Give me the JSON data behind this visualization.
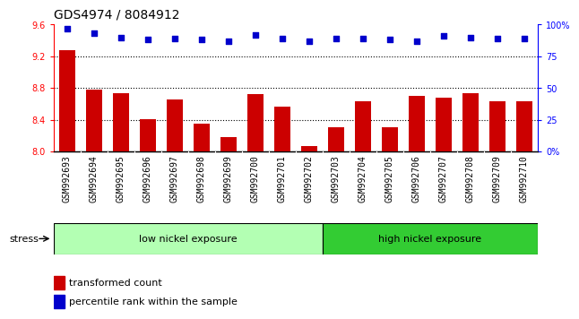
{
  "title": "GDS4974 / 8084912",
  "samples": [
    "GSM992693",
    "GSM992694",
    "GSM992695",
    "GSM992696",
    "GSM992697",
    "GSM992698",
    "GSM992699",
    "GSM992700",
    "GSM992701",
    "GSM992702",
    "GSM992703",
    "GSM992704",
    "GSM992705",
    "GSM992706",
    "GSM992707",
    "GSM992708",
    "GSM992709",
    "GSM992710"
  ],
  "bar_values": [
    9.28,
    8.78,
    8.73,
    8.41,
    8.65,
    8.35,
    8.18,
    8.72,
    8.56,
    8.07,
    8.31,
    8.63,
    8.31,
    8.7,
    8.68,
    8.73,
    8.63,
    8.63
  ],
  "dot_values": [
    97,
    93,
    90,
    88,
    89,
    88,
    87,
    92,
    89,
    87,
    89,
    89,
    88,
    87,
    91,
    90,
    89,
    89
  ],
  "bar_color": "#cc0000",
  "dot_color": "#0000cc",
  "ylim_left": [
    8.0,
    9.6
  ],
  "ylim_right": [
    0,
    100
  ],
  "yticks_left": [
    8.0,
    8.4,
    8.8,
    9.2,
    9.6
  ],
  "yticks_right": [
    0,
    25,
    50,
    75,
    100
  ],
  "group1_label": "low nickel exposure",
  "group2_label": "high nickel exposure",
  "group1_count": 10,
  "group2_count": 8,
  "group_color1": "#b3ffb3",
  "group_color2": "#33cc33",
  "stress_label": "stress",
  "legend_bar_label": "transformed count",
  "legend_dot_label": "percentile rank within the sample",
  "title_fontsize": 10,
  "tick_fontsize": 7,
  "dotted_grid_values": [
    8.4,
    8.8,
    9.2
  ],
  "right_tick_labels": [
    "0%",
    "25",
    "50",
    "75",
    "100%"
  ],
  "xtick_bg_color": "#d8d8d8",
  "plot_bg_color": "#ffffff"
}
